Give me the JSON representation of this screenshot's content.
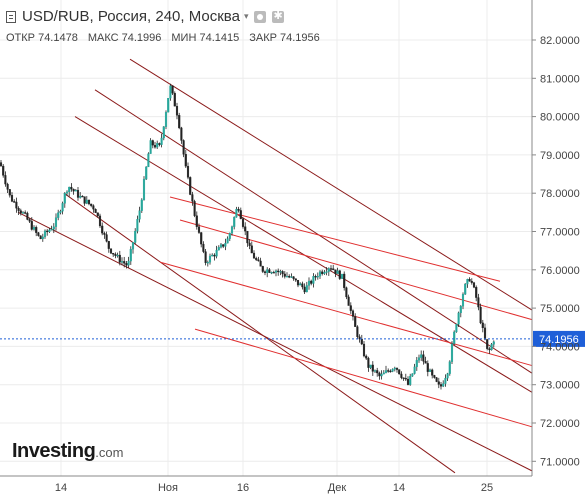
{
  "header": {
    "title": "USD/RUB, Россия, 240, Москва",
    "ohlc": {
      "open": "ОТКР 74.1478",
      "high": "МАКС 74.1996",
      "low": "МИН 74.1415",
      "close": "ЗАКР 74.1956"
    }
  },
  "logo": {
    "main": "Investing",
    "domain": ".com"
  },
  "colors": {
    "up": "#26a69a",
    "line": "#8b1a1a",
    "red_line": "#e03030",
    "price": "#1e5fd8",
    "grid": "#ececec"
  },
  "chart_data": {
    "type": "candlestick",
    "x_ticks": [
      "14",
      "Ноя",
      "16",
      "Дек",
      "14",
      "25"
    ],
    "y_ticks": [
      "82.0000",
      "81.0000",
      "80.0000",
      "79.0000",
      "78.0000",
      "77.0000",
      "76.0000",
      "75.0000",
      "74.0000",
      "73.0000",
      "72.0000",
      "71.0000"
    ],
    "ylim": [
      70.55,
      82.5
    ],
    "current_price": "74.1956",
    "grid": true,
    "price_path": [
      [
        0,
        78.8
      ],
      [
        10,
        77.9
      ],
      [
        25,
        77.4
      ],
      [
        40,
        76.8
      ],
      [
        55,
        77.2
      ],
      [
        68,
        78.2
      ],
      [
        80,
        77.9
      ],
      [
        95,
        77.6
      ],
      [
        108,
        76.6
      ],
      [
        118,
        76.3
      ],
      [
        128,
        76.1
      ],
      [
        140,
        77.6
      ],
      [
        150,
        79.3
      ],
      [
        160,
        79.2
      ],
      [
        170,
        80.8
      ],
      [
        178,
        80.0
      ],
      [
        186,
        78.6
      ],
      [
        195,
        77.4
      ],
      [
        205,
        76.2
      ],
      [
        218,
        76.5
      ],
      [
        228,
        76.8
      ],
      [
        238,
        77.7
      ],
      [
        250,
        76.5
      ],
      [
        262,
        76.0
      ],
      [
        275,
        76.0
      ],
      [
        290,
        75.8
      ],
      [
        305,
        75.5
      ],
      [
        318,
        75.9
      ],
      [
        330,
        76.1
      ],
      [
        342,
        75.8
      ],
      [
        355,
        74.5
      ],
      [
        368,
        73.5
      ],
      [
        380,
        73.2
      ],
      [
        395,
        73.5
      ],
      [
        408,
        73.0
      ],
      [
        420,
        73.8
      ],
      [
        432,
        73.2
      ],
      [
        440,
        72.9
      ],
      [
        448,
        73.4
      ],
      [
        456,
        74.6
      ],
      [
        464,
        75.5
      ],
      [
        470,
        75.8
      ],
      [
        476,
        75.3
      ],
      [
        482,
        74.5
      ],
      [
        488,
        73.8
      ],
      [
        494,
        74.2
      ]
    ],
    "trend_lines": [
      {
        "kind": "dark",
        "x1": 130,
        "y1": 81.5,
        "x2": 532,
        "y2": 74.95
      },
      {
        "kind": "dark",
        "x1": 95,
        "y1": 80.7,
        "x2": 532,
        "y2": 73.3
      },
      {
        "kind": "dark",
        "x1": 75,
        "y1": 80.0,
        "x2": 532,
        "y2": 72.8
      },
      {
        "kind": "dark",
        "x1": 18,
        "y1": 77.5,
        "x2": 532,
        "y2": 70.75
      },
      {
        "kind": "dark",
        "x1": 64,
        "y1": 78.0,
        "x2": 455,
        "y2": 70.7
      },
      {
        "kind": "red",
        "x1": 170,
        "y1": 77.9,
        "x2": 500,
        "y2": 75.7
      },
      {
        "kind": "red",
        "x1": 180,
        "y1": 77.3,
        "x2": 532,
        "y2": 74.7
      },
      {
        "kind": "red",
        "x1": 160,
        "y1": 76.2,
        "x2": 532,
        "y2": 73.5
      },
      {
        "kind": "red",
        "x1": 195,
        "y1": 74.45,
        "x2": 532,
        "y2": 71.9
      }
    ]
  }
}
